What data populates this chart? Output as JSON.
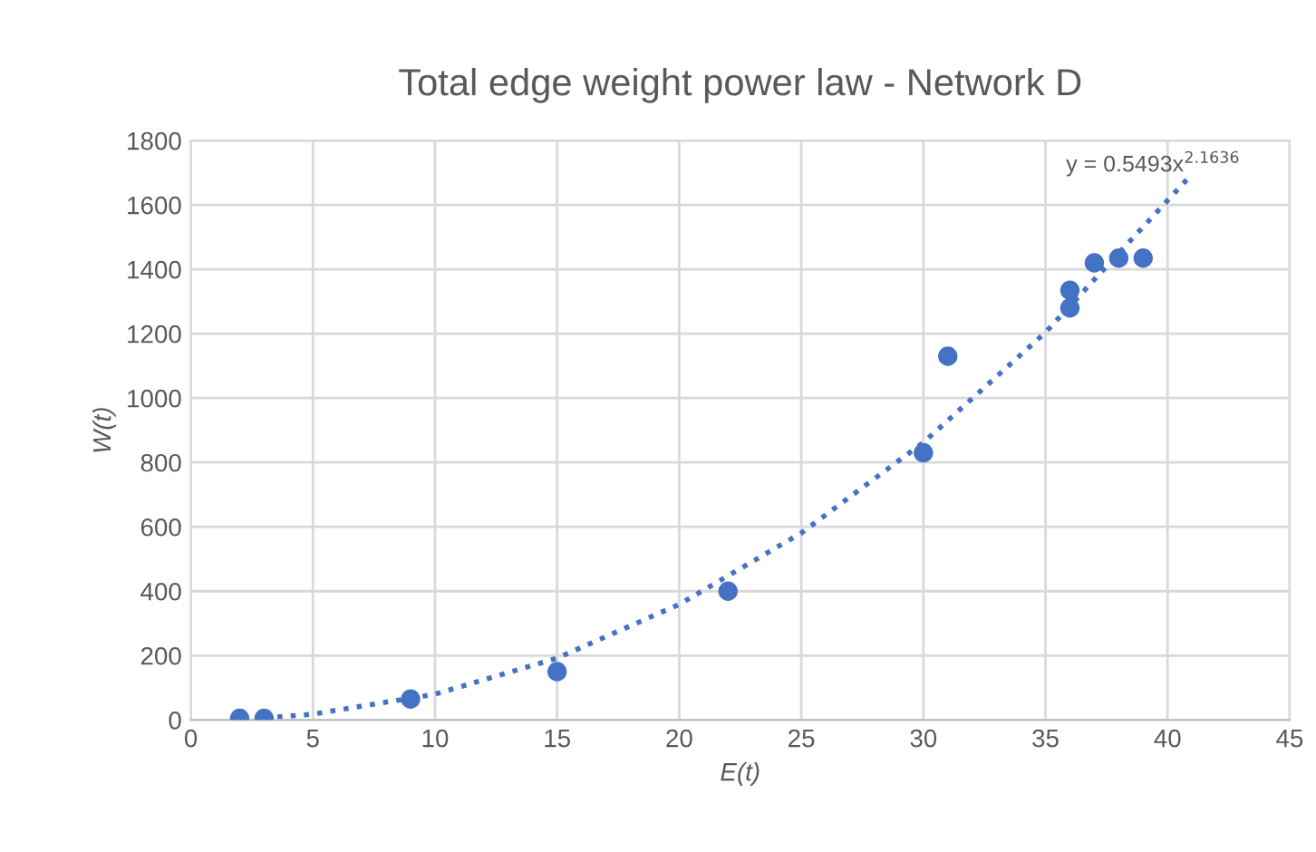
{
  "chart_data": {
    "type": "scatter",
    "title": "Total edge weight power law - Network D",
    "xlabel": "E(t)",
    "ylabel": "W(t)",
    "x": [
      2,
      3,
      9,
      15,
      22,
      30,
      31,
      36,
      36,
      37,
      38,
      39
    ],
    "series": [
      {
        "color": "#4472c4",
        "marker": "circle",
        "values": [
          5,
          5,
          65,
          150,
          400,
          830,
          1130,
          1280,
          1335,
          1420,
          1435,
          1435
        ]
      },
      {
        "type": "line",
        "color": "#4472c4",
        "line_style": "dotted",
        "marker": "none",
        "x": [
          3,
          5,
          10,
          15,
          20,
          25,
          30,
          35,
          41
        ],
        "values": [
          6,
          18,
          80,
          192,
          359,
          581,
          862,
          1204,
          1696
        ]
      }
    ],
    "annotations": [
      "y = 0.5493x$^{2.1636}$"
    ],
    "xlim": [
      0,
      45
    ],
    "xticks": [
      0,
      5,
      10,
      15,
      20,
      25,
      30,
      35,
      40,
      45
    ],
    "ylim": [
      0,
      1800
    ],
    "yticks": [
      0,
      200,
      400,
      600,
      800,
      1000,
      1200,
      1400,
      1600,
      1800
    ],
    "grid": true,
    "legend": false
  }
}
